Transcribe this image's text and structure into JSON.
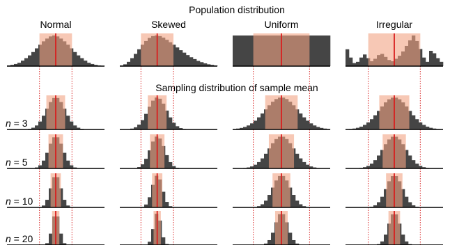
{
  "chart_data": {
    "type": "bar",
    "title": "Population distribution",
    "sampling_title": "Sampling distribution of sample mean",
    "columns": [
      "Normal",
      "Skewed",
      "Uniform",
      "Irregular"
    ],
    "row_labels": [
      {
        "symbol": "n",
        "eq": " = 3"
      },
      {
        "symbol": "n",
        "eq": " = 5"
      },
      {
        "symbol": "n",
        "eq": " = 10"
      },
      {
        "symbol": "n",
        "eq": " = 20"
      }
    ],
    "sample_sizes": [
      3,
      5,
      10,
      20
    ],
    "x_domain": [
      -3,
      3
    ],
    "population_means": [
      0,
      -0.7,
      0,
      0
    ],
    "population_sd": [
      1,
      1,
      1.73,
      1.6
    ],
    "population_histograms": [
      [
        0.02,
        0.04,
        0.07,
        0.11,
        0.18,
        0.26,
        0.35,
        0.46,
        0.58,
        0.7,
        0.81,
        0.9,
        0.97,
        1.0,
        0.97,
        0.9,
        0.81,
        0.7,
        0.58,
        0.46,
        0.35,
        0.26,
        0.18,
        0.11,
        0.07,
        0.04,
        0.02,
        0.01
      ],
      [
        0.02,
        0.06,
        0.14,
        0.26,
        0.4,
        0.55,
        0.7,
        0.82,
        0.92,
        0.98,
        1.0,
        0.98,
        0.93,
        0.86,
        0.78,
        0.7,
        0.61,
        0.52,
        0.44,
        0.36,
        0.29,
        0.23,
        0.17,
        0.13,
        0.09,
        0.06,
        0.04,
        0.02
      ],
      [
        1,
        1,
        1,
        1,
        1,
        1,
        1,
        1,
        1,
        1,
        1,
        1,
        1,
        1,
        1,
        1,
        1,
        1,
        1,
        1,
        1,
        1,
        1,
        1,
        1,
        1,
        1,
        1
      ],
      [
        0.55,
        0.28,
        0.1,
        0.14,
        0.28,
        0.38,
        0.26,
        0.16,
        0.24,
        0.36,
        0.4,
        0.3,
        0.2,
        0.16,
        0.24,
        0.34,
        0.48,
        0.66,
        0.84,
        1.0,
        0.82,
        0.56,
        0.28,
        0.14,
        0.5,
        0.42,
        0.26,
        0.14
      ]
    ],
    "colors": {
      "bar": "#454545",
      "band": "#f2a383",
      "band_opacity": 0.6,
      "mean_line": "#d81f1f",
      "axis": "#000000",
      "guide": "#d81f1f"
    }
  }
}
